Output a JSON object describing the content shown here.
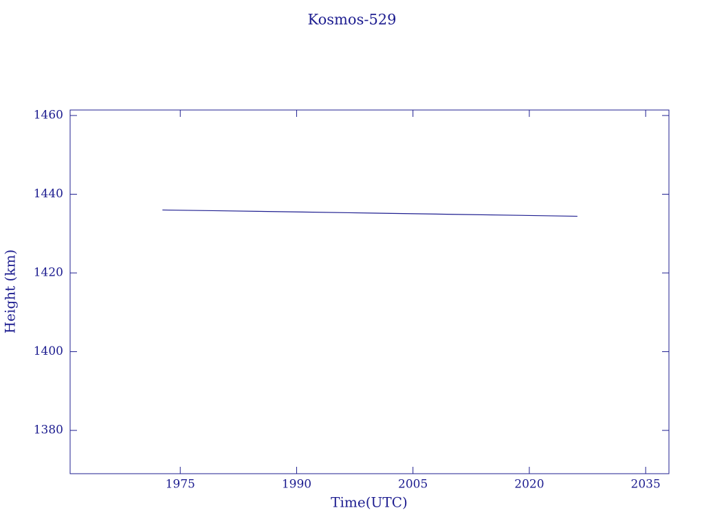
{
  "chart_data": {
    "type": "line",
    "title": "Kosmos-529",
    "x_label": "Time(UTC)",
    "y_label": "Height (km)",
    "x": [
      1972.7,
      1980,
      1990,
      2000,
      2010,
      2020,
      2026.2
    ],
    "values": [
      1436.0,
      1435.8,
      1435.5,
      1435.2,
      1434.9,
      1434.6,
      1434.4
    ],
    "color": "#1c1c8f",
    "xlim": [
      1960.8,
      2038.0
    ],
    "xticks": [
      1975,
      1990,
      2005,
      2020,
      2035
    ],
    "ylim": [
      1369.0,
      1461.4
    ],
    "yticks": [
      1380,
      1400,
      1420,
      1440,
      1460
    ]
  }
}
